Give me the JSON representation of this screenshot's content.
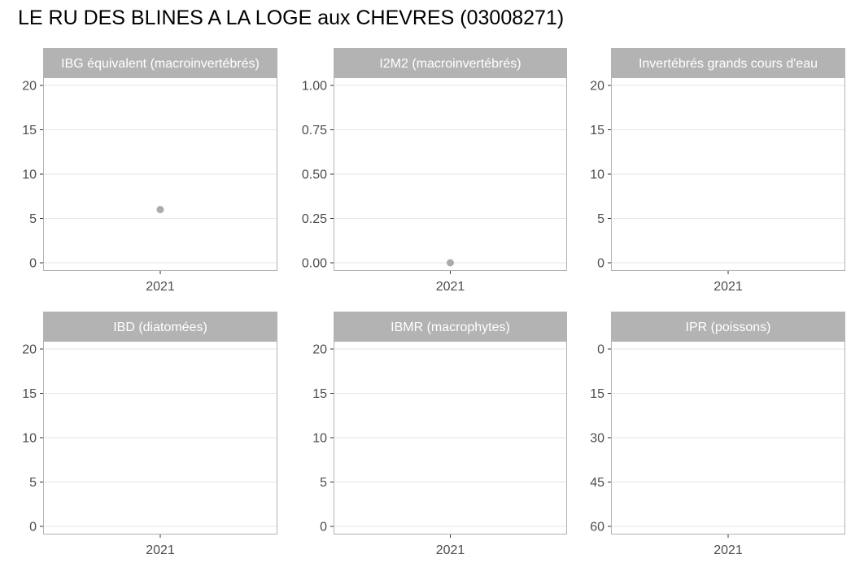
{
  "page_title": "LE RU DES BLINES A LA LOGE aux CHEVRES (03008271)",
  "colors": {
    "strip_bg": "#b3b3b3",
    "strip_text": "#ffffff",
    "panel_border": "#b3b3b3",
    "grid": "#e5e5e5",
    "tick_text": "#4d4d4d",
    "point": "#ababab"
  },
  "chart_data": [
    {
      "type": "scatter",
      "title": "IBG équivalent (macroinvertébrés)",
      "categories": [
        "2021"
      ],
      "yticks": [
        "0",
        "5",
        "10",
        "15",
        "20"
      ],
      "ylim": [
        0,
        21
      ],
      "reverse": false,
      "points": [
        {
          "x": "2021",
          "y": 6
        }
      ],
      "grid": true
    },
    {
      "type": "scatter",
      "title": "I2M2 (macroinvertébrés)",
      "categories": [
        "2021"
      ],
      "yticks": [
        "0.00",
        "0.25",
        "0.50",
        "0.75",
        "1.00"
      ],
      "ylim": [
        0,
        1.05
      ],
      "reverse": false,
      "points": [
        {
          "x": "2021",
          "y": 0
        }
      ],
      "grid": true
    },
    {
      "type": "scatter",
      "title": "Invertébrés grands cours d'eau",
      "categories": [
        "2021"
      ],
      "yticks": [
        "0",
        "5",
        "10",
        "15",
        "20"
      ],
      "ylim": [
        0,
        21
      ],
      "reverse": false,
      "points": [],
      "grid": true
    },
    {
      "type": "scatter",
      "title": "IBD (diatomées)",
      "categories": [
        "2021"
      ],
      "yticks": [
        "0",
        "5",
        "10",
        "15",
        "20"
      ],
      "ylim": [
        0,
        21
      ],
      "reverse": false,
      "points": [],
      "grid": true
    },
    {
      "type": "scatter",
      "title": "IBMR (macrophytes)",
      "categories": [
        "2021"
      ],
      "yticks": [
        "0",
        "5",
        "10",
        "15",
        "20"
      ],
      "ylim": [
        0,
        21
      ],
      "reverse": false,
      "points": [],
      "grid": true
    },
    {
      "type": "scatter",
      "title": "IPR (poissons)",
      "categories": [
        "2021"
      ],
      "yticks": [
        "0",
        "15",
        "30",
        "45",
        "60"
      ],
      "ylim": [
        0,
        63
      ],
      "reverse": true,
      "points": [],
      "grid": true
    }
  ]
}
